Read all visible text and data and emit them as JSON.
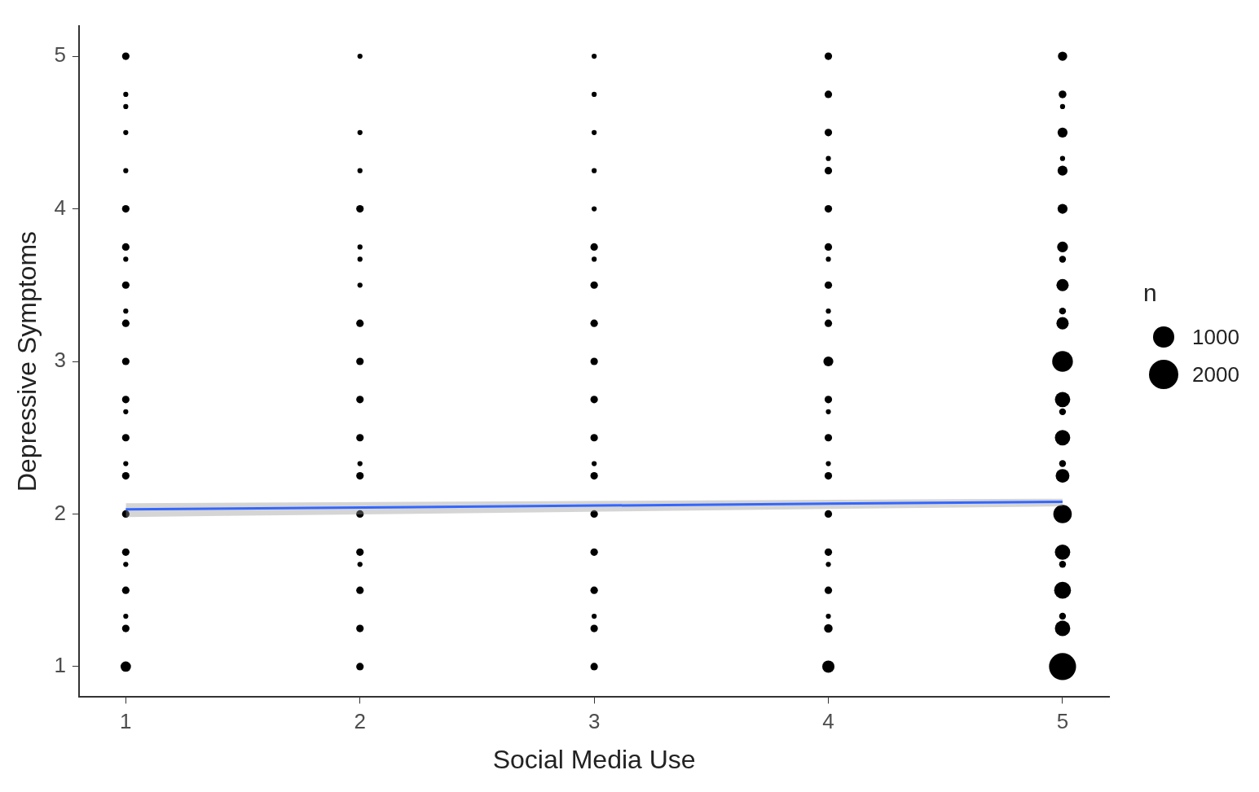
{
  "chart_data": {
    "type": "bubble",
    "xlabel": "Social Media Use",
    "ylabel": "Depressive Symptoms",
    "legend_title": "n",
    "size_legend": [
      1000,
      2000
    ],
    "grid": false,
    "xlim": [
      0.8,
      5.2
    ],
    "ylim": [
      0.8,
      5.2
    ],
    "xticks": [
      1,
      2,
      3,
      4,
      5
    ],
    "yticks": [
      1,
      2,
      3,
      4,
      5
    ],
    "series": [
      {
        "color": "#000000",
        "x": [
          1,
          1,
          1,
          1,
          1,
          1,
          1,
          1,
          1,
          1,
          1,
          1,
          1,
          1,
          1,
          1,
          1,
          1,
          1,
          1,
          1,
          1,
          1,
          1,
          2,
          2,
          2,
          2,
          2,
          2,
          2,
          2,
          2,
          2,
          2,
          2,
          2,
          2,
          2,
          2,
          2,
          2,
          2,
          3,
          3,
          3,
          3,
          3,
          3,
          3,
          3,
          3,
          3,
          3,
          3,
          3,
          3,
          3,
          3,
          3,
          3,
          3,
          3,
          4,
          4,
          4,
          4,
          4,
          4,
          4,
          4,
          4,
          4,
          4,
          4,
          4,
          4,
          4,
          4,
          4,
          4,
          4,
          4,
          4,
          4,
          4,
          4,
          5,
          5,
          5,
          5,
          5,
          5,
          5,
          5,
          5,
          5,
          5,
          5,
          5,
          5,
          5,
          5,
          5,
          5,
          5,
          5,
          5,
          5,
          5,
          5,
          5
        ],
        "values": [
          5,
          4.75,
          4.67,
          4.5,
          4.25,
          4,
          3.75,
          3.67,
          3.5,
          3.33,
          3.25,
          3,
          2.75,
          2.67,
          2.5,
          2.33,
          2.25,
          2,
          1.75,
          1.67,
          1.5,
          1.33,
          1.25,
          1,
          5,
          4.5,
          4.25,
          4,
          3.75,
          3.67,
          3.5,
          3.25,
          3,
          2.75,
          2.5,
          2.33,
          2.25,
          2,
          1.75,
          1.67,
          1.5,
          1.25,
          1,
          5,
          4.75,
          4.5,
          4.25,
          4,
          3.75,
          3.67,
          3.5,
          3.25,
          3,
          2.75,
          2.5,
          2.33,
          2.25,
          2,
          1.75,
          1.5,
          1.33,
          1.25,
          1,
          5,
          4.75,
          4.5,
          4.33,
          4.25,
          4,
          3.75,
          3.67,
          3.5,
          3.33,
          3.25,
          3,
          2.75,
          2.67,
          2.5,
          2.33,
          2.25,
          2,
          1.75,
          1.67,
          1.5,
          1.33,
          1.25,
          1,
          5,
          4.75,
          4.67,
          4.5,
          4.33,
          4.25,
          4,
          3.75,
          3.67,
          3.5,
          3.33,
          3.25,
          3,
          2.75,
          2.67,
          2.5,
          2.33,
          2.25,
          2,
          1.75,
          1.67,
          1.5,
          1.33,
          1.25,
          1
        ],
        "sizes": [
          130,
          60,
          60,
          60,
          60,
          130,
          130,
          60,
          130,
          60,
          130,
          130,
          130,
          60,
          130,
          60,
          130,
          130,
          130,
          60,
          130,
          60,
          130,
          250,
          60,
          60,
          60,
          130,
          60,
          60,
          60,
          130,
          130,
          130,
          130,
          60,
          130,
          130,
          130,
          60,
          130,
          130,
          130,
          60,
          60,
          60,
          60,
          60,
          130,
          60,
          130,
          130,
          130,
          130,
          130,
          60,
          130,
          130,
          130,
          130,
          60,
          130,
          130,
          130,
          130,
          130,
          60,
          130,
          130,
          130,
          60,
          130,
          60,
          130,
          230,
          130,
          60,
          130,
          60,
          130,
          130,
          130,
          60,
          130,
          60,
          170,
          350,
          200,
          140,
          60,
          230,
          60,
          230,
          230,
          270,
          110,
          350,
          110,
          350,
          1000,
          550,
          110,
          550,
          110,
          440,
          790,
          550,
          110,
          660,
          110,
          550,
          1700
        ]
      },
      {
        "type": "line",
        "color": "#3366ff",
        "x": [
          1,
          5
        ],
        "values": [
          2.03,
          2.08
        ],
        "lower": [
          1.98,
          2.05
        ],
        "upper": [
          2.07,
          2.1
        ]
      }
    ]
  }
}
